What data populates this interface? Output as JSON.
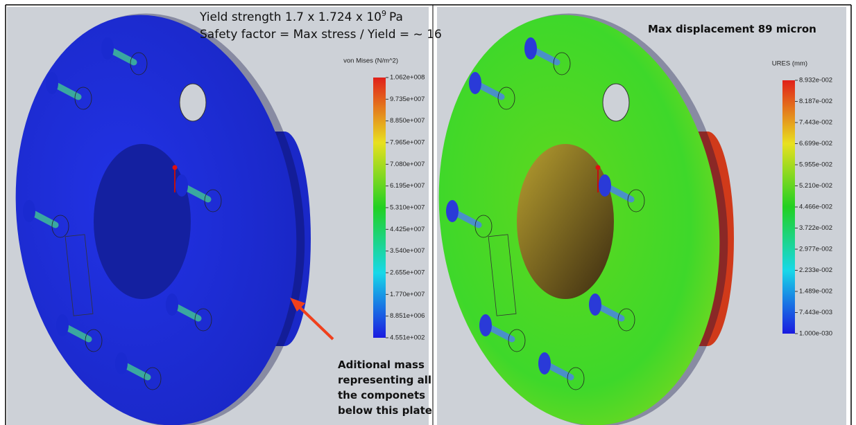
{
  "left_panel": {
    "title": {
      "text_before": "Yield strength 1.7 x 1.724 x 10",
      "superscript": "9",
      "text_after": "Pa"
    },
    "subtitle": "Safety factor = Max stress / Yield = ~ 16",
    "legend": {
      "title": "von Mises (N/m^2)",
      "labels": [
        "1.062e+008",
        "9.735e+007",
        "8.850e+007",
        "7.965e+007",
        "7.080e+007",
        "6.195e+007",
        "5.310e+007",
        "4.425e+007",
        "3.540e+007",
        "2.655e+007",
        "1.770e+007",
        "8.851e+006",
        "4.551e+002"
      ]
    },
    "annotation": [
      "Aditional mass",
      "representing all",
      "the componets",
      "below this plate"
    ]
  },
  "right_panel": {
    "title": "Max displacement 89 micron",
    "legend": {
      "title": "URES (mm)",
      "labels": [
        "8.932e-002",
        "8.187e-002",
        "7.443e-002",
        "6.699e-002",
        "5.955e-002",
        "5.210e-002",
        "4.466e-002",
        "3.722e-002",
        "2.977e-002",
        "2.233e-002",
        "1.489e-002",
        "7.443e-003",
        "1.000e-030"
      ]
    }
  }
}
